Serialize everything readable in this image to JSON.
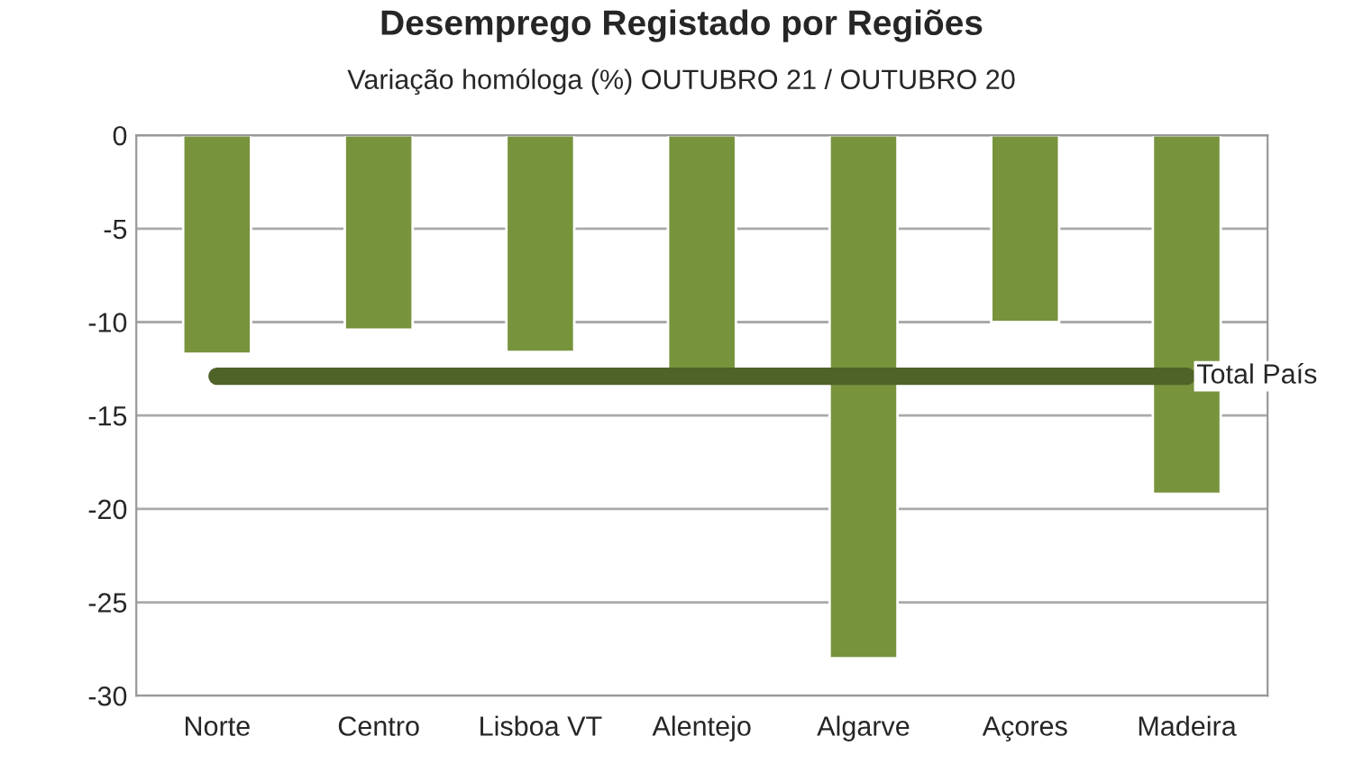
{
  "chart_data": {
    "type": "bar",
    "title": "Desemprego Registado por Regiões",
    "subtitle": "Variação homóloga (%) OUTUBRO 21 / OUTUBRO 20",
    "categories": [
      "Norte",
      "Centro",
      "Lisboa VT",
      "Alentejo",
      "Algarve",
      "Açores",
      "Madeira"
    ],
    "series": [
      {
        "color": "#77933c",
        "values": [
          -11.7,
          -10.4,
          -11.6,
          -12.5,
          -28.0,
          -10.0,
          -19.2
        ]
      },
      {
        "type": "line",
        "name": "Total País",
        "color": "#4f6228",
        "values": [
          -12.9,
          -12.9,
          -12.9,
          -12.9,
          -12.9,
          -12.9,
          -12.9
        ]
      }
    ],
    "ylim": [
      -30,
      0
    ],
    "yticks": [
      -30,
      -25,
      -20,
      -15,
      -10,
      -5,
      0
    ],
    "grid": "y",
    "legend": false
  }
}
